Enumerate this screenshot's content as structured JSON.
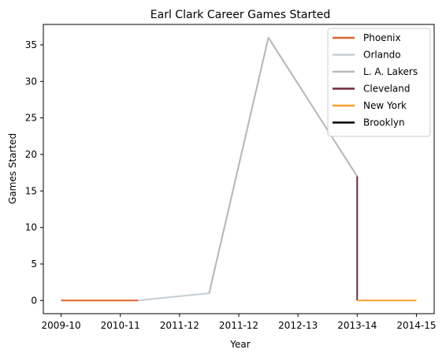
{
  "chart_data": {
    "type": "line",
    "title": "Earl Clark Career Games Started",
    "xlabel": "Year",
    "ylabel": "Games Started",
    "x_ticks": [
      "2009-10",
      "2010-11",
      "2011-12",
      "2011-12",
      "2012-13",
      "2013-14",
      "2014-15"
    ],
    "yticks": [
      0,
      5,
      10,
      15,
      20,
      25,
      30,
      35
    ],
    "ylim": [
      -1.8,
      37.8
    ],
    "xlim": [
      -0.3,
      6.3
    ],
    "grid": false,
    "legend_position": "top-right",
    "series": [
      {
        "name": "Phoenix",
        "color": "#e0622a",
        "points": [
          [
            0,
            0
          ],
          [
            1,
            0
          ],
          [
            1.3,
            0
          ]
        ]
      },
      {
        "name": "Orlando",
        "color": "#c4ced4",
        "points": [
          [
            1.3,
            0
          ],
          [
            2.5,
            1
          ],
          [
            3.5,
            36
          ],
          [
            5,
            17
          ]
        ]
      },
      {
        "name": "L. A. Lakers",
        "color": "#b9b9b9",
        "points": [
          [
            2.5,
            1
          ],
          [
            3.5,
            36
          ],
          [
            5,
            17
          ]
        ]
      },
      {
        "name": "Cleveland",
        "color": "#6f2639",
        "points": [
          [
            5,
            17
          ],
          [
            5,
            0
          ]
        ]
      },
      {
        "name": "New York",
        "color": "#f5a22b",
        "points": [
          [
            5,
            0
          ],
          [
            6,
            0
          ]
        ]
      },
      {
        "name": "Brooklyn",
        "color": "#000000",
        "points": []
      }
    ]
  }
}
